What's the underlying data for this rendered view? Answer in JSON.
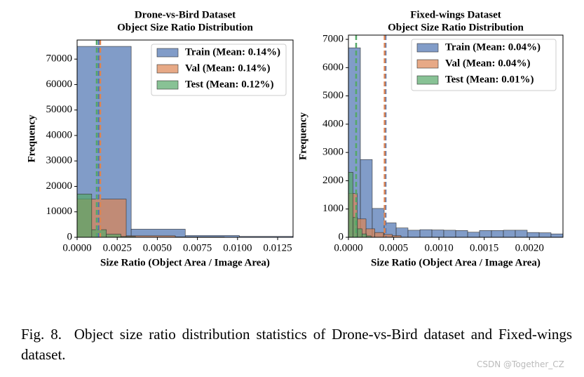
{
  "chart_data": [
    {
      "type": "histogram",
      "title": "Drone-vs-Bird Dataset",
      "subtitle": "Object Size Ratio Distribution",
      "xlabel": "Size Ratio (Object Area / Image Area)",
      "ylabel": "Frequency",
      "xlim": [
        0,
        0.01346
      ],
      "ylim": [
        0,
        77500
      ],
      "xticks": [
        {
          "value": 0,
          "label": "0.0000"
        },
        {
          "value": 0.0025,
          "label": "0.0025"
        },
        {
          "value": 0.005,
          "label": "0.0050"
        },
        {
          "value": 0.0075,
          "label": "0.0075"
        },
        {
          "value": 0.01,
          "label": "0.0100"
        },
        {
          "value": 0.0125,
          "label": "0.0125"
        }
      ],
      "yticks": [
        0,
        10000,
        20000,
        30000,
        40000,
        50000,
        60000,
        70000
      ],
      "legend": "upper right",
      "series": [
        {
          "name": "Train (Mean: 0.14%)",
          "color": "#4c72b0",
          "mean": 0.00135,
          "bins": [
            0,
            0.00337,
            0.00674,
            0.01011,
            0.01348
          ],
          "values": [
            75000,
            3200,
            700,
            350
          ]
        },
        {
          "name": "Val (Mean: 0.14%)",
          "color": "#dd8452",
          "mean": 0.00144,
          "bins": [
            0,
            0.00306,
            0.00612,
            0.00918
          ],
          "values": [
            15000,
            600,
            150
          ]
        },
        {
          "name": "Test (Mean: 0.12%)",
          "color": "#55a868",
          "mean": 0.00122,
          "bins": [
            0,
            0.00091,
            0.00182,
            0.00273,
            0.00364
          ],
          "values": [
            17000,
            3000,
            1200,
            300
          ]
        }
      ]
    },
    {
      "type": "histogram",
      "title": "Fixed-wings Dataset",
      "subtitle": "Object Size Ratio Distribution",
      "xlabel": "Size Ratio (Object Area / Image Area)",
      "ylabel": "Frequency",
      "xlim": [
        0,
        0.00237
      ],
      "ylim": [
        0,
        7150
      ],
      "xticks": [
        {
          "value": 0,
          "label": "0.0000"
        },
        {
          "value": 0.0005,
          "label": "0.0005"
        },
        {
          "value": 0.001,
          "label": "0.0010"
        },
        {
          "value": 0.0015,
          "label": "0.0015"
        },
        {
          "value": 0.002,
          "label": "0.0020"
        }
      ],
      "yticks": [
        0,
        1000,
        2000,
        3000,
        4000,
        5000,
        6000,
        7000
      ],
      "legend": "upper right",
      "series": [
        {
          "name": "Train (Mean: 0.04%)",
          "color": "#4c72b0",
          "mean": 0.00041,
          "bins": [
            0,
            0.000132,
            0.000263,
            0.000395,
            0.000527,
            0.000658,
            0.00079,
            0.000922,
            0.001053,
            0.001185,
            0.001317,
            0.001448,
            0.00158,
            0.001712,
            0.001843,
            0.001975,
            0.002107,
            0.002238,
            0.00237
          ],
          "values": [
            6700,
            2750,
            1020,
            510,
            330,
            250,
            270,
            260,
            250,
            240,
            180,
            240,
            240,
            250,
            250,
            170,
            160,
            120
          ]
        },
        {
          "name": "Val (Mean: 0.04%)",
          "color": "#dd8452",
          "mean": 0.0004,
          "bins": [
            0,
            9.7e-05,
            0.000194,
            0.000291,
            0.000388,
            0.000485,
            0.000581
          ],
          "values": [
            1550,
            650,
            300,
            170,
            100,
            60
          ]
        },
        {
          "name": "Test (Mean: 0.01%)",
          "color": "#55a868",
          "mean": 8.5e-05,
          "bins": [
            0,
            5e-05,
            0.0001,
            0.00015,
            0.0002,
            0.00025
          ],
          "values": [
            2300,
            700,
            300,
            120,
            50
          ]
        }
      ]
    }
  ],
  "caption": "Fig. 8.  Object size ratio distribution statistics of Drone-vs-Bird dataset and Fixed-wings dataset.",
  "watermark": "CSDN @Together_CZ"
}
